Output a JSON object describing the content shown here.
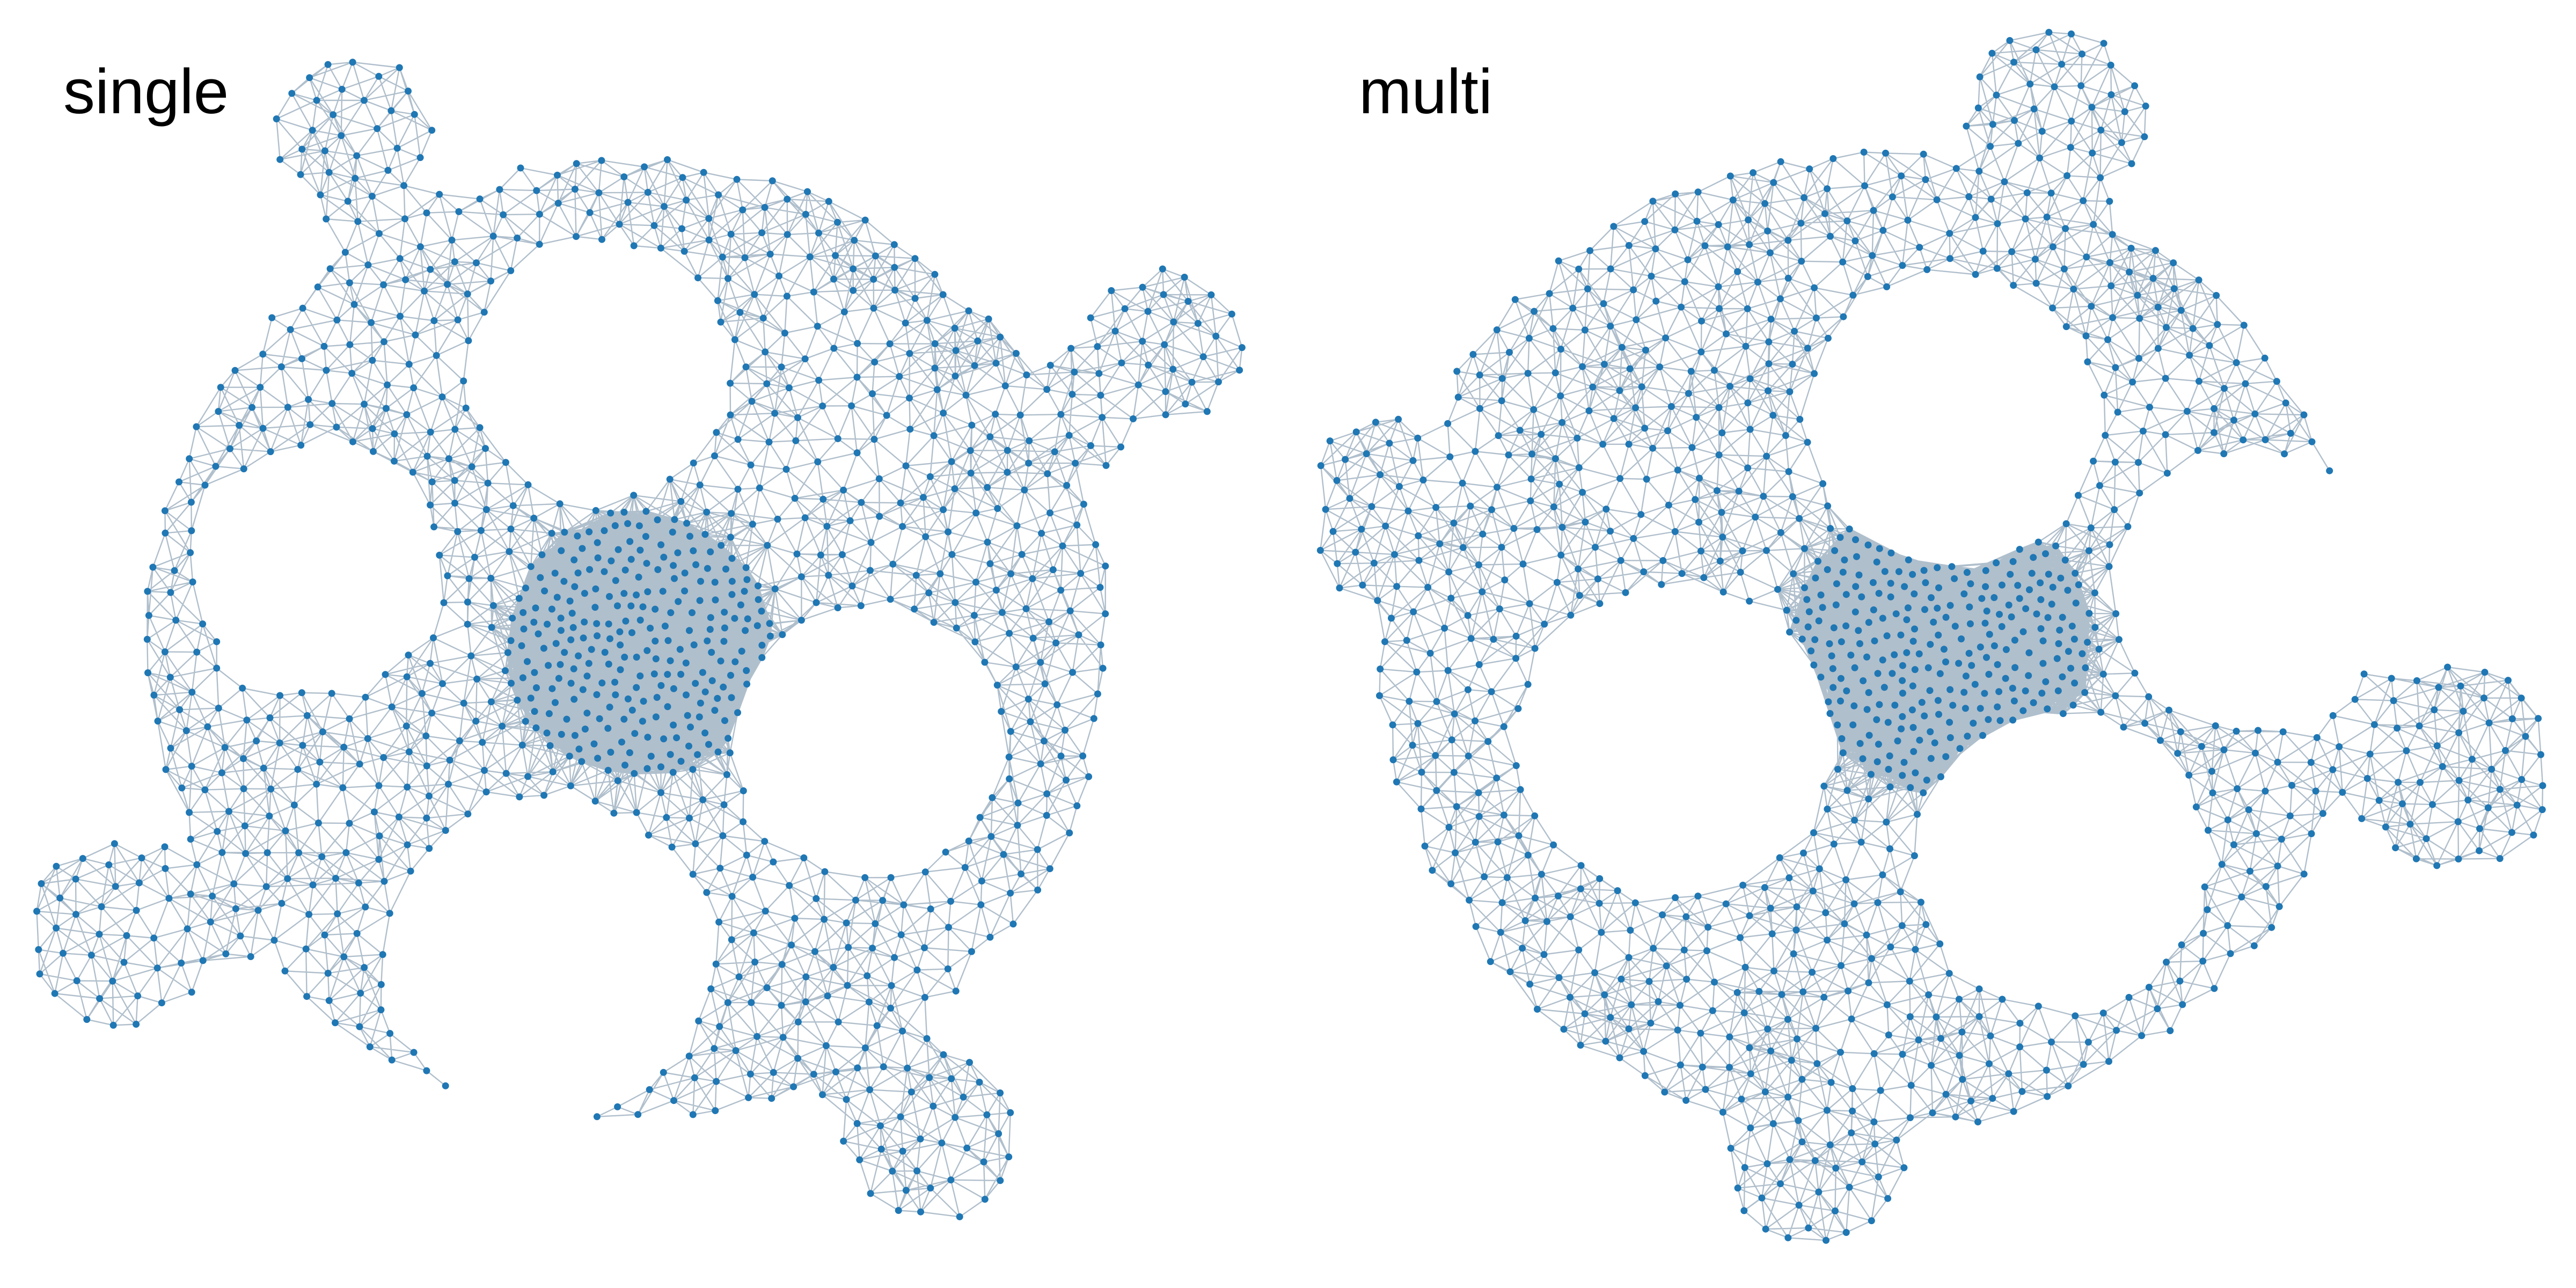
{
  "panels": [
    {
      "label": "single"
    },
    {
      "label": "multi"
    }
  ],
  "colors": {
    "node": "#1f77b4",
    "edge": "#b0bfcc",
    "background": "#ffffff"
  }
}
